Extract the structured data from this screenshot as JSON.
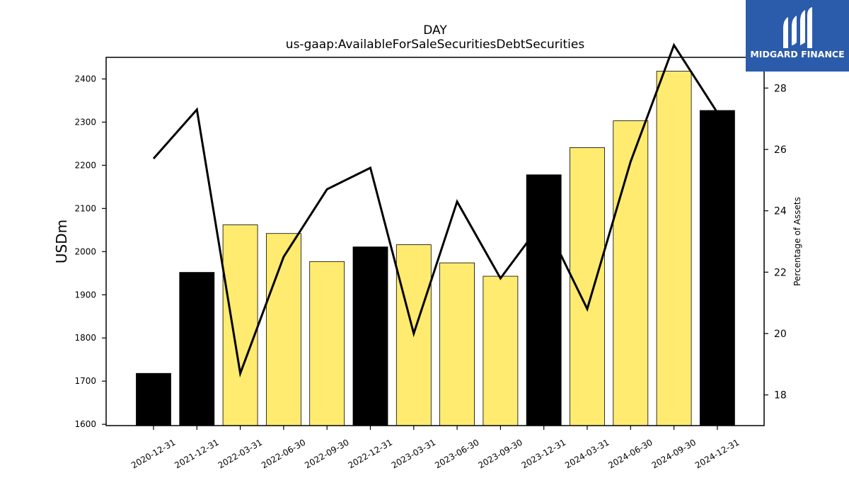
{
  "chart_data": {
    "type": "bar",
    "title": "DAY",
    "subtitle": "us-gaap:AvailableForSaleSecuritiesDebtSecurities",
    "ylabel": "USDm",
    "ylabel_right": "Percentage of Assets",
    "ylim": [
      1597,
      2450
    ],
    "ylim_right": [
      17,
      29
    ],
    "yticks": [
      1600,
      1700,
      1800,
      1900,
      2000,
      2100,
      2200,
      2300,
      2400
    ],
    "yticks_right": [
      18,
      20,
      22,
      24,
      26,
      28
    ],
    "categories": [
      "2020-12-31",
      "2021-12-31",
      "2022-03-31",
      "2022-06-30",
      "2022-09-30",
      "2022-12-31",
      "2023-03-31",
      "2023-06-30",
      "2023-09-30",
      "2023-12-31",
      "2024-03-31",
      "2024-06-30",
      "2024-09-30",
      "2024-12-31"
    ],
    "series": [
      {
        "type": "bar",
        "values": [
          1718,
          1952,
          2062,
          2042,
          1977,
          2011,
          2016,
          1974,
          1943,
          2178,
          2241,
          2303,
          2418,
          2327
        ],
        "colors": [
          "#000000",
          "#000000",
          "#ffeb70",
          "#ffeb70",
          "#ffeb70",
          "#000000",
          "#ffeb70",
          "#ffeb70",
          "#ffeb70",
          "#000000",
          "#ffeb70",
          "#ffeb70",
          "#ffeb70",
          "#000000"
        ]
      },
      {
        "type": "line",
        "axis": "right",
        "values": [
          25.7,
          27.3,
          18.7,
          22.5,
          24.7,
          25.4,
          20.0,
          24.3,
          21.8,
          23.7,
          20.8,
          25.6,
          29.4,
          27.2
        ],
        "color": "#000000"
      }
    ],
    "grid": false
  },
  "logo": {
    "text": "MIDGARD FINANCE",
    "bg_color": "#2b5bab"
  }
}
